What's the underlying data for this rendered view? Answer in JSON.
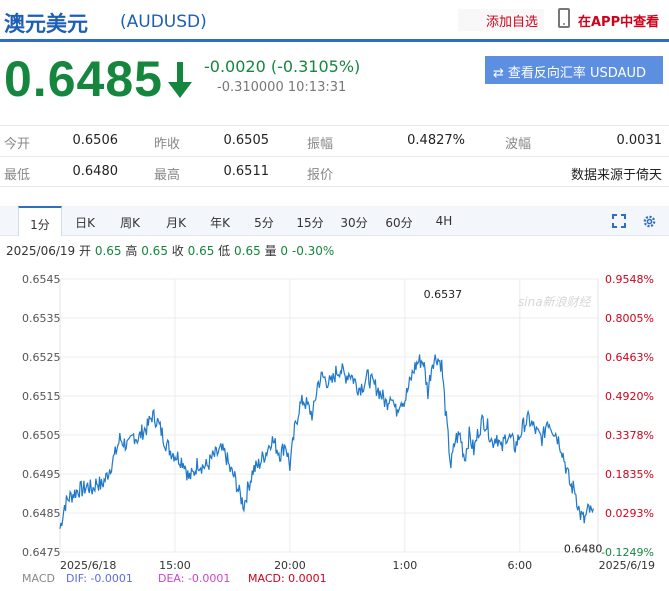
{
  "header": {
    "title": "澳元美元",
    "symbol": "(AUDUSD)",
    "add_watch": "添加自选",
    "app_view": "在APP中查看"
  },
  "quote": {
    "price": "0.6485",
    "change": "-0.0020 (-0.3105%)",
    "sub_change": "-0.310000",
    "time": "10:13:31",
    "reverse_button": "查看反向汇率 USDAUD"
  },
  "stats": {
    "row1": [
      {
        "label": "今开",
        "value": "0.6506"
      },
      {
        "label": "昨收",
        "value": "0.6505"
      },
      {
        "label": "振幅",
        "value": "0.4827%"
      },
      {
        "label": "波幅",
        "value": "0.0031"
      }
    ],
    "row2": [
      {
        "label": "最低",
        "value": "0.6480"
      },
      {
        "label": "最高",
        "value": "0.6511"
      },
      {
        "label": "报价",
        "value": ""
      },
      {
        "label": "",
        "value": "数据来源于倚天"
      }
    ]
  },
  "tabs": [
    "1分",
    "日K",
    "周K",
    "月K",
    "年K",
    "5分",
    "15分",
    "30分",
    "60分",
    "4H"
  ],
  "ohlc": {
    "date": "2025/06/19",
    "open_label": "开",
    "open": "0.65",
    "high_label": "高",
    "high": "0.65",
    "close_label": "收",
    "close": "0.65",
    "low_label": "低",
    "low": "0.65",
    "vol_label": "量",
    "vol": "0",
    "pct": "-0.30%"
  },
  "macd": {
    "label": "MACD",
    "dif": "DIF: -0.0001",
    "dea": "DEA: -0.0001",
    "macd": "MACD: 0.0001"
  },
  "watermark": "sina新浪财经",
  "colors": {
    "line": "#1f78c8",
    "up": "#d0021b",
    "down": "#15863e",
    "accent": "#2f6dbf"
  },
  "chart_data": {
    "type": "line",
    "title": "",
    "xlabel": "",
    "ylabel": "",
    "ylim": [
      0.6475,
      0.6545
    ],
    "y_ticks": [
      "0.6545",
      "0.6535",
      "0.6525",
      "0.6515",
      "0.6505",
      "0.6495",
      "0.6485",
      "0.6475"
    ],
    "y_ticks_pct": [
      "0.9548%",
      "0.8005%",
      "0.6463%",
      "0.4920%",
      "0.3378%",
      "0.1835%",
      "0.0293%",
      "-0.1249%"
    ],
    "x_ticks": [
      "2025/6/18",
      "15:00",
      "20:00",
      "1:00",
      "6:00",
      "2025/6/19"
    ],
    "annotations": [
      {
        "text": "0.6537",
        "x": 16.6,
        "y": 0.6537
      },
      {
        "text": "0.6480",
        "x": 22.7,
        "y": 0.648
      }
    ],
    "series": [
      {
        "x": [
          0,
          0.2,
          0.4,
          0.6,
          0.8,
          1.0,
          1.2,
          1.4,
          1.6,
          1.8,
          2.0,
          2.2,
          2.4,
          2.6,
          2.8,
          3.0,
          3.2,
          3.4,
          3.6,
          3.8,
          4.0,
          4.2,
          4.4,
          4.6,
          4.8,
          5.0,
          5.2,
          5.4,
          5.6,
          5.8,
          6.0,
          6.2,
          6.4,
          6.6,
          6.8,
          7.0,
          7.2,
          7.4,
          7.6,
          7.8,
          8.0,
          8.2,
          8.4,
          8.6,
          8.8,
          9.0,
          9.2,
          9.4,
          9.6,
          9.8,
          10.0,
          10.2,
          10.4,
          10.6,
          10.8,
          11.0,
          11.2,
          11.4,
          11.6,
          11.8,
          12.0,
          12.2,
          12.4,
          12.6,
          12.8,
          13.0,
          13.2,
          13.4,
          13.6,
          13.8,
          14.0,
          14.2,
          14.4,
          14.6,
          14.8,
          15.0,
          15.2,
          15.4,
          15.6,
          15.8,
          16.0,
          16.2,
          16.4,
          16.6,
          16.8,
          17.0,
          17.2,
          17.4,
          17.6,
          17.8,
          18.0,
          18.2,
          18.4,
          18.6,
          18.8,
          19.0,
          19.2,
          19.4,
          19.6,
          19.8,
          20.0,
          20.2,
          20.4,
          20.6,
          20.8,
          21.0,
          21.2,
          21.4,
          21.6,
          21.8,
          22.0,
          22.2,
          22.4,
          22.6,
          22.8,
          23.0,
          23.2
        ],
        "values": [
          0.6481,
          0.6487,
          0.6489,
          0.649,
          0.6491,
          0.6491,
          0.6492,
          0.6491,
          0.6493,
          0.6492,
          0.6494,
          0.6497,
          0.65,
          0.6504,
          0.6503,
          0.6502,
          0.6505,
          0.6504,
          0.6506,
          0.6507,
          0.651,
          0.6509,
          0.6506,
          0.6503,
          0.6501,
          0.65,
          0.6499,
          0.6498,
          0.6494,
          0.6495,
          0.6498,
          0.6497,
          0.6497,
          0.6499,
          0.65,
          0.6501,
          0.65,
          0.6496,
          0.6494,
          0.649,
          0.6487,
          0.6492,
          0.6496,
          0.6497,
          0.6499,
          0.6501,
          0.6504,
          0.6502,
          0.65,
          0.6503,
          0.6497,
          0.6506,
          0.6512,
          0.6514,
          0.6512,
          0.651,
          0.6518,
          0.652,
          0.6519,
          0.6518,
          0.6521,
          0.6522,
          0.652,
          0.6521,
          0.6519,
          0.6517,
          0.6518,
          0.652,
          0.6518,
          0.6517,
          0.6515,
          0.6513,
          0.6516,
          0.6511,
          0.6514,
          0.6514,
          0.6518,
          0.6522,
          0.6524,
          0.6524,
          0.6516,
          0.6524,
          0.6525,
          0.6523,
          0.6509,
          0.6497,
          0.6504,
          0.6505,
          0.6499,
          0.6505,
          0.6501,
          0.6506,
          0.6509,
          0.6507,
          0.6503,
          0.6505,
          0.6501,
          0.6505,
          0.6504,
          0.6502,
          0.6505,
          0.6508,
          0.6509,
          0.6507,
          0.6505,
          0.6504,
          0.6509,
          0.6507,
          0.6505,
          0.6502,
          0.6497,
          0.6492,
          0.6491,
          0.6485,
          0.6483,
          0.6486,
          0.6484
        ]
      }
    ]
  }
}
